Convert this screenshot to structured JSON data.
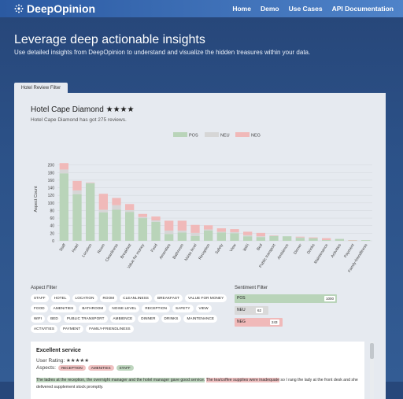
{
  "nav": {
    "brand": "DeepOpinion",
    "links": [
      "Home",
      "Demo",
      "Use Cases",
      "API Documentation"
    ]
  },
  "hero": {
    "title": "Leverage deep actionable insights",
    "subtitle": "Use detailed insights from DeepOpinion to understand and visualize the hidden treasures within your data."
  },
  "tab": {
    "label": "Hotel Review Filter"
  },
  "hotel": {
    "title": "Hotel Cape Diamond ★★★★",
    "summary": "Hotel Cape Diamond has got 275 reviews."
  },
  "chart_data": {
    "type": "bar",
    "stacked": true,
    "ylabel": "Aspect Count",
    "xlabel": "",
    "ylim": [
      0,
      220
    ],
    "yticks": [
      0,
      20,
      40,
      60,
      80,
      100,
      120,
      140,
      160,
      180,
      200
    ],
    "legend_position": "top-center",
    "categories": [
      "Staff",
      "Hotel",
      "Location",
      "Room",
      "Cleanliness",
      "Breakfast",
      "Value for money",
      "Food",
      "Amenities",
      "Bathroom",
      "Noise level",
      "Reception",
      "Safety",
      "View",
      "WiFi",
      "Bed",
      "Public transport",
      "Ambience",
      "Dinner",
      "Drinks",
      "Maintenance",
      "Activities",
      "Payment",
      "Family-friendliness"
    ],
    "series": [
      {
        "name": "POS",
        "color": "#b9d4b9",
        "values": [
          178,
          123,
          152,
          75,
          82,
          76,
          60,
          50,
          18,
          22,
          13,
          27,
          22,
          20,
          12,
          10,
          13,
          12,
          8,
          7,
          2,
          5,
          1,
          2
        ]
      },
      {
        "name": "NEU",
        "color": "#d6d6d6",
        "values": [
          10,
          10,
          1,
          7,
          12,
          5,
          3,
          4,
          9,
          5,
          8,
          3,
          2,
          3,
          3,
          2,
          0,
          0,
          1,
          0,
          0,
          0,
          0,
          0
        ]
      },
      {
        "name": "NEG",
        "color": "#f0b9b9",
        "values": [
          17,
          25,
          1,
          42,
          19,
          16,
          8,
          10,
          26,
          26,
          21,
          11,
          9,
          8,
          9,
          9,
          1,
          0,
          2,
          2,
          5,
          0,
          1,
          0
        ]
      }
    ]
  },
  "aspect_filter": {
    "title": "Aspect Filter",
    "chips": [
      "STAFF",
      "HOTEL",
      "LOCATION",
      "ROOM",
      "CLEANLINESS",
      "BREAKFAST",
      "VALUE FOR MONEY",
      "FOOD",
      "AMENITIES",
      "BATHROOM",
      "NOISE LEVEL",
      "RECEPTION",
      "SAFETY",
      "VIEW",
      "WIFI",
      "BED",
      "PUBLIC TRANSPORT",
      "AMBIENCE",
      "DINNER",
      "DRINKS",
      "MAINTENANCE",
      "ACTIVITIES",
      "PAYMENT",
      "FAMILY-FRIENDLINESS"
    ]
  },
  "sentiment_filter": {
    "title": "Sentiment Filter",
    "items": [
      {
        "label": "POS",
        "count": "1000",
        "color": "#b9d4b9",
        "fraction": 1.0
      },
      {
        "label": "NEU",
        "count": "62",
        "color": "#d9d9d9",
        "fraction": 0.33
      },
      {
        "label": "NEG",
        "count": "243",
        "color": "#f0b9b9",
        "fraction": 0.47
      }
    ]
  },
  "review": {
    "title": "Excellent service",
    "rating_label": "User Rating:",
    "stars": "★★★★★",
    "aspects_label": "Aspects:",
    "aspects": [
      {
        "label": "RECEPTION",
        "color": "#efc1c1"
      },
      {
        "label": "AMENITIES",
        "color": "#efc1c1"
      },
      {
        "label": "STAFF",
        "color": "#bfd6bf"
      }
    ],
    "text_pos": "The ladies at the reception, the overnight manager and the hotel manager gave good service.",
    "text_neg": "The tea/coffee supplies were inadequate",
    "text_rest": " so I rang the lady at the front desk and she delivered supplement stock promptly."
  }
}
